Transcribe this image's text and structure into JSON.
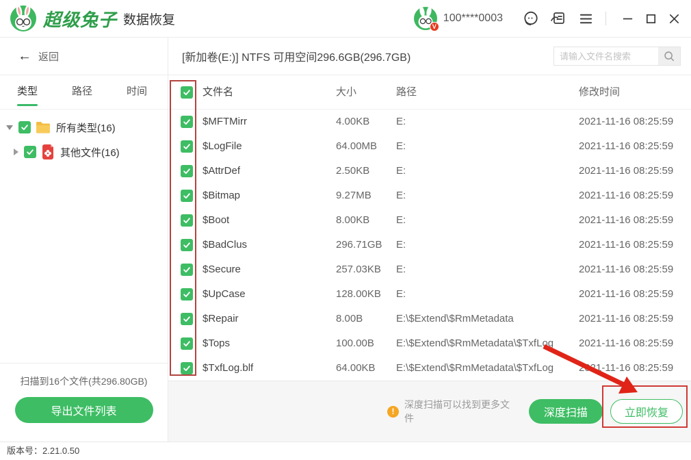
{
  "titlebar": {
    "app_name": "超级兔子",
    "app_subtitle": "数据恢复",
    "account": "100****0003"
  },
  "toolbar": {
    "back_label": "返回",
    "volume_title": "[新加卷(E:)] NTFS 可用空间296.6GB(296.7GB)",
    "search_placeholder": "请输入文件名搜索"
  },
  "sidebar": {
    "tabs": [
      {
        "label": "类型",
        "active": true
      },
      {
        "label": "路径",
        "active": false
      },
      {
        "label": "时间",
        "active": false
      }
    ],
    "tree": [
      {
        "label": "所有类型(16)",
        "icon": "folder-icon",
        "checked": true,
        "expanded": true
      },
      {
        "label": "其他文件(16)",
        "icon": "other-file-icon",
        "checked": true,
        "expanded": false
      }
    ],
    "scan_summary": "扫描到16个文件(共296.80GB)",
    "export_button": "导出文件列表"
  },
  "table": {
    "columns": [
      "文件名",
      "大小",
      "路径",
      "修改时间"
    ],
    "header_checked": true,
    "rows": [
      {
        "name": "$MFTMirr",
        "size": "4.00KB",
        "path": "E:",
        "modified": "2021-11-16 08:25:59",
        "checked": true
      },
      {
        "name": "$LogFile",
        "size": "64.00MB",
        "path": "E:",
        "modified": "2021-11-16 08:25:59",
        "checked": true
      },
      {
        "name": "$AttrDef",
        "size": "2.50KB",
        "path": "E:",
        "modified": "2021-11-16 08:25:59",
        "checked": true
      },
      {
        "name": "$Bitmap",
        "size": "9.27MB",
        "path": "E:",
        "modified": "2021-11-16 08:25:59",
        "checked": true
      },
      {
        "name": "$Boot",
        "size": "8.00KB",
        "path": "E:",
        "modified": "2021-11-16 08:25:59",
        "checked": true
      },
      {
        "name": "$BadClus",
        "size": "296.71GB",
        "path": "E:",
        "modified": "2021-11-16 08:25:59",
        "checked": true
      },
      {
        "name": "$Secure",
        "size": "257.03KB",
        "path": "E:",
        "modified": "2021-11-16 08:25:59",
        "checked": true
      },
      {
        "name": "$UpCase",
        "size": "128.00KB",
        "path": "E:",
        "modified": "2021-11-16 08:25:59",
        "checked": true
      },
      {
        "name": "$Repair",
        "size": "8.00B",
        "path": "E:\\$Extend\\$RmMetadata",
        "modified": "2021-11-16 08:25:59",
        "checked": true
      },
      {
        "name": "$Tops",
        "size": "100.00B",
        "path": "E:\\$Extend\\$RmMetadata\\$TxfLog",
        "modified": "2021-11-16 08:25:59",
        "checked": true
      },
      {
        "name": "$TxfLog.blf",
        "size": "64.00KB",
        "path": "E:\\$Extend\\$RmMetadata\\$TxfLog",
        "modified": "2021-11-16 08:25:59",
        "checked": true
      }
    ]
  },
  "footer": {
    "hint": "深度扫描可以找到更多文件",
    "deep_scan_button": "深度扫描",
    "recover_button": "立即恢复"
  },
  "statusbar": {
    "version_label": "版本号：2.21.0.50"
  },
  "colors": {
    "accent_green": "#3ebd64",
    "brand_green": "#2e9e4a",
    "warning_orange": "#f5a623",
    "annotation_red": "#cf3a35",
    "badge_red": "#e63a1f"
  }
}
